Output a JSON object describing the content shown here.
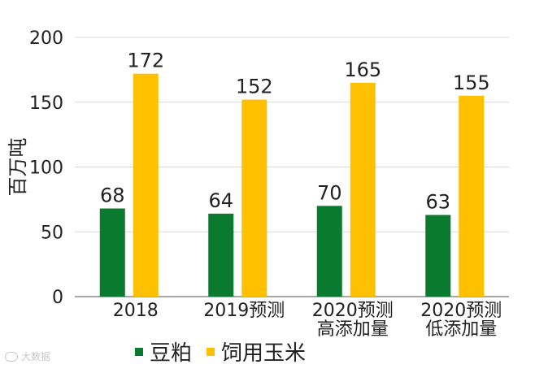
{
  "chart_data": {
    "type": "bar",
    "ylabel": "百万吨",
    "ylim": [
      0,
      200
    ],
    "yticks": [
      0,
      50,
      100,
      150,
      200
    ],
    "grid": true,
    "legend_position": "bottom",
    "categories": [
      [
        "2018"
      ],
      [
        "2019预测"
      ],
      [
        "2020预测",
        "高添加量"
      ],
      [
        "2020预测",
        "低添加量"
      ]
    ],
    "series": [
      {
        "name": "豆粕",
        "color": "#0a7a2f",
        "values": [
          68,
          64,
          70,
          63
        ]
      },
      {
        "name": "饲用玉米",
        "color": "#ffc000",
        "values": [
          172,
          152,
          165,
          155
        ]
      }
    ]
  },
  "watermark": {
    "text": "大数据"
  }
}
